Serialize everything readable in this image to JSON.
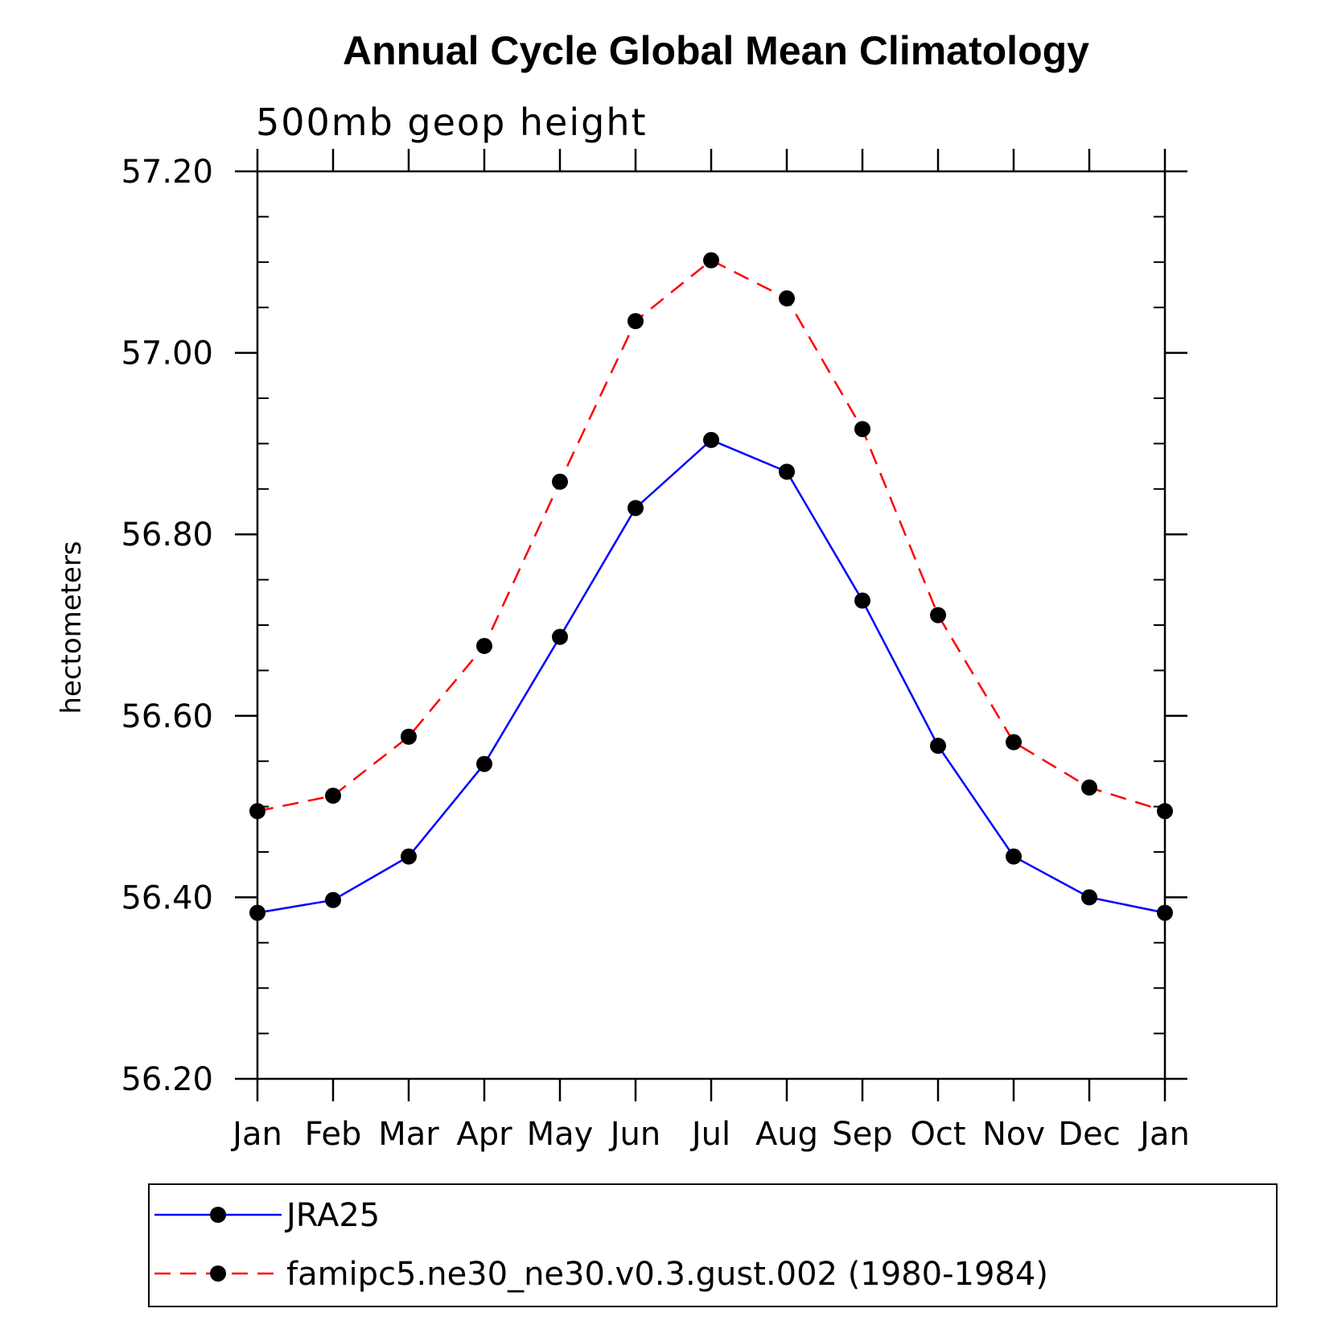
{
  "chart_data": {
    "type": "line",
    "title": "Annual Cycle Global Mean Climatology",
    "subtitle": "500mb geop height",
    "xlabel": "",
    "ylabel": "hectometers",
    "categories": [
      "Jan",
      "Feb",
      "Mar",
      "Apr",
      "May",
      "Jun",
      "Jul",
      "Aug",
      "Sep",
      "Oct",
      "Nov",
      "Dec",
      "Jan"
    ],
    "ylim": [
      56.2,
      57.2
    ],
    "y_ticks": [
      "56.20",
      "56.40",
      "56.60",
      "56.80",
      "57.00",
      "57.20"
    ],
    "legend_position": "bottom",
    "series": [
      {
        "name": "JRA25",
        "color": "#0000ff",
        "dash": "solid",
        "values": [
          56.383,
          56.397,
          56.445,
          56.547,
          56.687,
          56.829,
          56.904,
          56.869,
          56.727,
          56.567,
          56.445,
          56.4,
          56.383
        ]
      },
      {
        "name": "famipc5.ne30_ne30.v0.3.gust.002 (1980-1984)",
        "color": "#ff0000",
        "dash": "dashed",
        "values": [
          56.495,
          56.512,
          56.577,
          56.677,
          56.858,
          57.035,
          57.102,
          57.06,
          56.916,
          56.711,
          56.571,
          56.521,
          56.495
        ]
      }
    ]
  }
}
